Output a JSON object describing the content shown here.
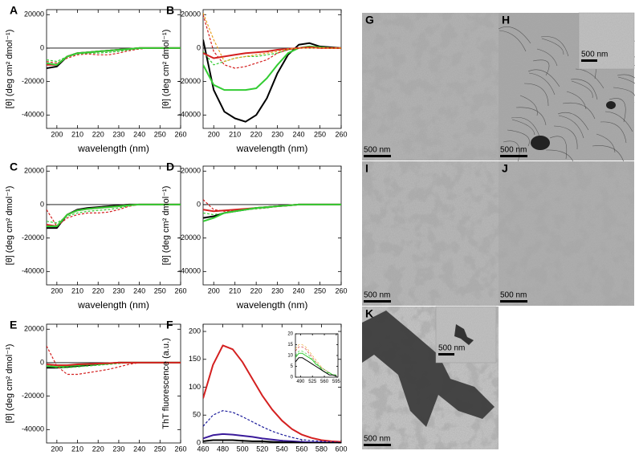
{
  "chart_data": [
    {
      "type": "line",
      "label": "A",
      "ylabel": "[θ] (deg cm² dmol⁻¹)",
      "xlabel": "wavelength (nm)",
      "xlim": [
        195,
        260
      ],
      "xticks": [
        200,
        210,
        220,
        230,
        240,
        250,
        260
      ],
      "ylim": [
        -48000,
        23000
      ],
      "yticks": [
        20000,
        0,
        -20000,
        -40000
      ],
      "zero_line": true,
      "x": [
        195,
        200,
        205,
        210,
        215,
        220,
        225,
        230,
        235,
        240,
        245,
        250,
        255,
        260
      ],
      "series": [
        {
          "color": "#000000",
          "dashed": false,
          "values": [
            -12000,
            -11000,
            -5000,
            -3000,
            -2500,
            -2000,
            -1500,
            -1000,
            -500,
            0,
            0,
            0,
            0,
            0
          ]
        },
        {
          "color": "#d42020",
          "dashed": false,
          "values": [
            -10000,
            -10000,
            -5000,
            -3000,
            -2500,
            -2000,
            -1500,
            -1000,
            -500,
            0,
            0,
            0,
            0,
            0
          ]
        },
        {
          "color": "#d42020",
          "dashed": true,
          "values": [
            -8000,
            -9000,
            -6000,
            -4000,
            -3500,
            -4000,
            -4000,
            -3000,
            -1500,
            -500,
            0,
            0,
            0,
            0
          ]
        },
        {
          "color": "#33cc33",
          "dashed": false,
          "values": [
            -9000,
            -10000,
            -5000,
            -3000,
            -2500,
            -2000,
            -1500,
            -1000,
            -500,
            0,
            0,
            0,
            0,
            0
          ]
        },
        {
          "color": "#33cc33",
          "dashed": true,
          "values": [
            -7000,
            -8000,
            -5000,
            -3500,
            -3000,
            -3000,
            -2500,
            -2000,
            -1000,
            -300,
            0,
            0,
            0,
            0
          ]
        }
      ]
    },
    {
      "type": "line",
      "label": "B",
      "ylabel": "[θ] (deg cm² dmol⁻¹)",
      "xlabel": "wavelength (nm)",
      "xlim": [
        195,
        260
      ],
      "xticks": [
        200,
        210,
        220,
        230,
        240,
        250,
        260
      ],
      "ylim": [
        -48000,
        23000
      ],
      "yticks": [
        20000,
        0,
        -20000,
        -40000
      ],
      "zero_line": true,
      "x": [
        195,
        200,
        205,
        210,
        215,
        220,
        225,
        230,
        235,
        240,
        245,
        250,
        255,
        260
      ],
      "series": [
        {
          "color": "#000000",
          "dashed": false,
          "values": [
            5000,
            -25000,
            -38000,
            -42000,
            -44000,
            -40000,
            -30000,
            -15000,
            -4000,
            2000,
            3000,
            1000,
            500,
            0
          ]
        },
        {
          "color": "#33cc33",
          "dashed": false,
          "values": [
            -10000,
            -22000,
            -25000,
            -25000,
            -25000,
            -24000,
            -18000,
            -10000,
            -3000,
            0,
            1000,
            500,
            0,
            0
          ]
        },
        {
          "color": "#33cc33",
          "dashed": true,
          "values": [
            -2000,
            -10000,
            -8000,
            -6000,
            -5000,
            -5000,
            -4000,
            -3000,
            -1000,
            0,
            500,
            0,
            0,
            0
          ]
        },
        {
          "color": "#d42020",
          "dashed": false,
          "values": [
            -3000,
            -6000,
            -5000,
            -4000,
            -3000,
            -2500,
            -2000,
            -1000,
            -500,
            0,
            500,
            0,
            0,
            0
          ]
        },
        {
          "color": "#d42020",
          "dashed": true,
          "values": [
            20000,
            -2000,
            -10000,
            -12000,
            -11000,
            -9000,
            -7000,
            -3000,
            -1000,
            0,
            500,
            0,
            0,
            0
          ]
        },
        {
          "color": "#e8a020",
          "dashed": true,
          "values": [
            21000,
            5000,
            -8000,
            -6000,
            -5000,
            -4000,
            -3000,
            -2000,
            -500,
            0,
            0,
            0,
            0,
            0
          ]
        }
      ]
    },
    {
      "type": "line",
      "label": "C",
      "ylabel": "[θ] (deg cm² dmol⁻¹)",
      "xlabel": "wavelength (nm)",
      "xlim": [
        195,
        260
      ],
      "xticks": [
        200,
        210,
        220,
        230,
        240,
        250,
        260
      ],
      "ylim": [
        -48000,
        23000
      ],
      "yticks": [
        20000,
        0,
        -20000,
        -40000
      ],
      "zero_line": true,
      "x": [
        195,
        200,
        205,
        210,
        215,
        220,
        225,
        230,
        235,
        240,
        245,
        250,
        255,
        260
      ],
      "series": [
        {
          "color": "#000000",
          "dashed": false,
          "values": [
            -14000,
            -14000,
            -6000,
            -3000,
            -2000,
            -1500,
            -1000,
            -500,
            0,
            0,
            0,
            0,
            0,
            0
          ]
        },
        {
          "color": "#d42020",
          "dashed": false,
          "values": [
            -12000,
            -13000,
            -6000,
            -3500,
            -2500,
            -2000,
            -1500,
            -1000,
            -300,
            0,
            0,
            0,
            0,
            0
          ]
        },
        {
          "color": "#d42020",
          "dashed": true,
          "values": [
            -3000,
            -13000,
            -8000,
            -6000,
            -5000,
            -5000,
            -4500,
            -3000,
            -1000,
            0,
            0,
            0,
            0,
            0
          ]
        },
        {
          "color": "#33cc33",
          "dashed": false,
          "values": [
            -13000,
            -13000,
            -6000,
            -3500,
            -2500,
            -2000,
            -1500,
            -1000,
            -300,
            0,
            0,
            0,
            0,
            0
          ]
        },
        {
          "color": "#33cc33",
          "dashed": true,
          "values": [
            -10000,
            -11000,
            -7000,
            -5000,
            -4000,
            -3500,
            -3000,
            -2000,
            -800,
            0,
            0,
            0,
            0,
            0
          ]
        }
      ]
    },
    {
      "type": "line",
      "label": "D",
      "ylabel": "[θ] (deg cm² dmol⁻¹)",
      "xlabel": "wavelength (nm)",
      "xlim": [
        195,
        260
      ],
      "xticks": [
        200,
        210,
        220,
        230,
        240,
        250,
        260
      ],
      "ylim": [
        -48000,
        23000
      ],
      "yticks": [
        20000,
        0,
        -20000,
        -40000
      ],
      "zero_line": true,
      "x": [
        195,
        200,
        205,
        210,
        215,
        220,
        225,
        230,
        235,
        240,
        245,
        250,
        255,
        260
      ],
      "series": [
        {
          "color": "#000000",
          "dashed": false,
          "values": [
            -8000,
            -7000,
            -5000,
            -4000,
            -3000,
            -2000,
            -1500,
            -1000,
            -500,
            0,
            0,
            0,
            0,
            0
          ]
        },
        {
          "color": "#d42020",
          "dashed": false,
          "values": [
            -3000,
            -4000,
            -3500,
            -3000,
            -2500,
            -2000,
            -1500,
            -1000,
            -500,
            0,
            0,
            0,
            0,
            0
          ]
        },
        {
          "color": "#d42020",
          "dashed": true,
          "values": [
            3000,
            -3000,
            -4000,
            -3500,
            -3000,
            -2500,
            -2000,
            -1000,
            -500,
            0,
            0,
            0,
            0,
            0
          ]
        },
        {
          "color": "#33cc33",
          "dashed": false,
          "values": [
            -10000,
            -8000,
            -5000,
            -4000,
            -3000,
            -2000,
            -1500,
            -1000,
            -500,
            0,
            0,
            0,
            0,
            0
          ]
        },
        {
          "color": "#33cc33",
          "dashed": true,
          "values": [
            -5000,
            -6000,
            -5000,
            -4000,
            -3000,
            -2500,
            -2000,
            -1000,
            -500,
            0,
            0,
            0,
            0,
            0
          ]
        }
      ]
    },
    {
      "type": "line",
      "label": "E",
      "ylabel": "[θ] (deg cm² dmol⁻¹)",
      "xlabel": "wavelength (nm)",
      "xlim": [
        195,
        260
      ],
      "xticks": [
        200,
        210,
        220,
        230,
        240,
        250,
        260
      ],
      "ylim": [
        -48000,
        23000
      ],
      "yticks": [
        20000,
        0,
        -20000,
        -40000
      ],
      "zero_line": true,
      "x": [
        195,
        200,
        205,
        210,
        215,
        220,
        225,
        230,
        235,
        240,
        245,
        250,
        255,
        260
      ],
      "series": [
        {
          "color": "#000000",
          "dashed": false,
          "values": [
            -3000,
            -3000,
            -2500,
            -2000,
            -1500,
            -1000,
            -500,
            0,
            0,
            0,
            0,
            0,
            0,
            0
          ]
        },
        {
          "color": "#33cc33",
          "dashed": false,
          "values": [
            -2000,
            -2500,
            -2000,
            -1500,
            -1000,
            -800,
            -500,
            0,
            0,
            0,
            0,
            0,
            0,
            0
          ]
        },
        {
          "color": "#33cc33",
          "dashed": true,
          "values": [
            -1000,
            -3000,
            -3000,
            -2500,
            -2000,
            -1500,
            -1000,
            -500,
            0,
            0,
            0,
            0,
            0,
            0
          ]
        },
        {
          "color": "#d42020",
          "dashed": false,
          "values": [
            -1000,
            -1500,
            -1500,
            -1000,
            -800,
            -500,
            -300,
            0,
            0,
            0,
            0,
            0,
            0,
            0
          ]
        },
        {
          "color": "#d42020",
          "dashed": true,
          "values": [
            10000,
            -2000,
            -7000,
            -7000,
            -6000,
            -5000,
            -4000,
            -2500,
            -1000,
            0,
            0,
            0,
            0,
            0
          ]
        }
      ]
    },
    {
      "type": "line",
      "label": "F",
      "ylabel": "ThT fluorescence (a.u.)",
      "xlabel": "wavelength (nm)",
      "xlim": [
        460,
        600
      ],
      "xticks": [
        460,
        480,
        500,
        520,
        540,
        560,
        580,
        600
      ],
      "ylim": [
        0,
        213
      ],
      "yticks": [
        0,
        50,
        100,
        150,
        200
      ],
      "zero_line": false,
      "x": [
        460,
        470,
        480,
        490,
        500,
        510,
        520,
        530,
        540,
        550,
        560,
        570,
        580,
        590,
        600
      ],
      "series": [
        {
          "color": "#d42020",
          "dashed": false,
          "values": [
            80,
            140,
            175,
            168,
            145,
            115,
            85,
            60,
            40,
            25,
            15,
            9,
            5,
            3,
            2
          ]
        },
        {
          "color": "#1a1a9a",
          "dashed": true,
          "values": [
            30,
            50,
            58,
            55,
            47,
            38,
            29,
            21,
            15,
            10,
            6,
            4,
            3,
            2,
            1
          ]
        },
        {
          "color": "#3a1a9a",
          "dashed": false,
          "values": [
            8,
            14,
            16,
            15,
            13,
            11,
            8,
            6,
            4,
            3,
            2,
            1,
            1,
            0,
            0
          ]
        },
        {
          "color": "#000000",
          "dashed": false,
          "values": [
            3,
            5,
            5,
            5,
            4,
            3,
            3,
            2,
            1,
            1,
            0,
            0,
            0,
            0,
            0
          ]
        }
      ],
      "inset": {
        "type": "line",
        "xlim": [
          475,
          600
        ],
        "xticks": [
          490,
          525,
          560,
          595
        ],
        "ylim": [
          0,
          20
        ],
        "yticks": [
          0,
          5,
          10,
          15,
          20
        ],
        "x": [
          475,
          485,
          495,
          505,
          515,
          525,
          535,
          545,
          555,
          565,
          575,
          585,
          595
        ],
        "series": [
          {
            "color": "#e8a020",
            "dashed": true,
            "values": [
              13,
              15,
              15,
              14,
              12,
              10,
              8,
              6,
              4,
              3,
              2,
              1,
              1
            ]
          },
          {
            "color": "#d42020",
            "dashed": true,
            "values": [
              12,
              14,
              14,
              13,
              11,
              9,
              7,
              5,
              4,
              3,
              2,
              1,
              1
            ]
          },
          {
            "color": "#33cc33",
            "dashed": true,
            "values": [
              10,
              12,
              12,
              11,
              10,
              8,
              7,
              5,
              4,
              3,
              2,
              1,
              1
            ]
          },
          {
            "color": "#33cc33",
            "dashed": false,
            "values": [
              9,
              11,
              11,
              10,
              9,
              8,
              6,
              5,
              3,
              2,
              2,
              1,
              1
            ]
          },
          {
            "color": "#000000",
            "dashed": false,
            "values": [
              7,
              9,
              9,
              8,
              7,
              6,
              5,
              4,
              3,
              2,
              1,
              1,
              0.5
            ]
          }
        ]
      }
    }
  ],
  "micrographs": [
    {
      "label": "G",
      "scale_bar": "500 nm"
    },
    {
      "label": "H",
      "scale_bar": "500 nm",
      "inset_scale_bar": "500 nm"
    },
    {
      "label": "I",
      "scale_bar": "500 nm"
    },
    {
      "label": "J",
      "scale_bar": "500 nm"
    },
    {
      "label": "K",
      "scale_bar": "500 nm",
      "inset_scale_bar": "500 nm"
    }
  ]
}
